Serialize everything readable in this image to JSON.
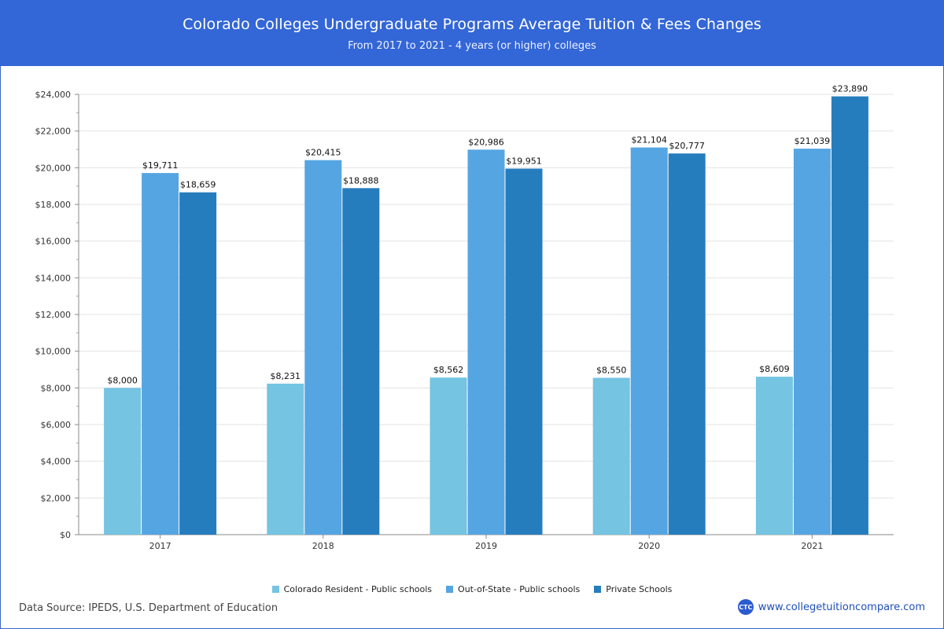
{
  "header": {
    "title": "Colorado Colleges Undergraduate Programs Average Tuition & Fees Changes",
    "subtitle": "From 2017 to 2021 - 4 years (or higher) colleges"
  },
  "footer": {
    "source": "Data Source: IPEDS, U.S. Department of Education",
    "site": "www.collegetuitioncompare.com",
    "logo_text": "CTC"
  },
  "chart_data": {
    "type": "bar",
    "categories": [
      "2017",
      "2018",
      "2019",
      "2020",
      "2021"
    ],
    "series": [
      {
        "name": "Colorado Resident - Public schools",
        "color": "#74c4e2",
        "values": [
          8000,
          8231,
          8562,
          8550,
          8609
        ],
        "labels": [
          "$8,000",
          "$8,231",
          "$8,562",
          "$8,550",
          "$8,609"
        ]
      },
      {
        "name": "Out-of-State - Public schools",
        "color": "#55a5e2",
        "values": [
          19711,
          20415,
          20986,
          21104,
          21039
        ],
        "labels": [
          "$19,711",
          "$20,415",
          "$20,986",
          "$21,104",
          "$21,039"
        ]
      },
      {
        "name": "Private Schools",
        "color": "#267dbd",
        "values": [
          18659,
          18888,
          19951,
          20777,
          23890
        ],
        "labels": [
          "$18,659",
          "$18,888",
          "$19,951",
          "$20,777",
          "$23,890"
        ]
      }
    ],
    "ylim": [
      0,
      24000
    ],
    "yticks": [
      0,
      2000,
      4000,
      6000,
      8000,
      10000,
      12000,
      14000,
      16000,
      18000,
      20000,
      22000,
      24000
    ],
    "ytick_labels": [
      "$0",
      "$2,000",
      "$4,000",
      "$6,000",
      "$8,000",
      "$10,000",
      "$12,000",
      "$14,000",
      "$16,000",
      "$18,000",
      "$20,000",
      "$22,000",
      "$24,000"
    ],
    "grid": true,
    "legend_position": "bottom-center"
  }
}
